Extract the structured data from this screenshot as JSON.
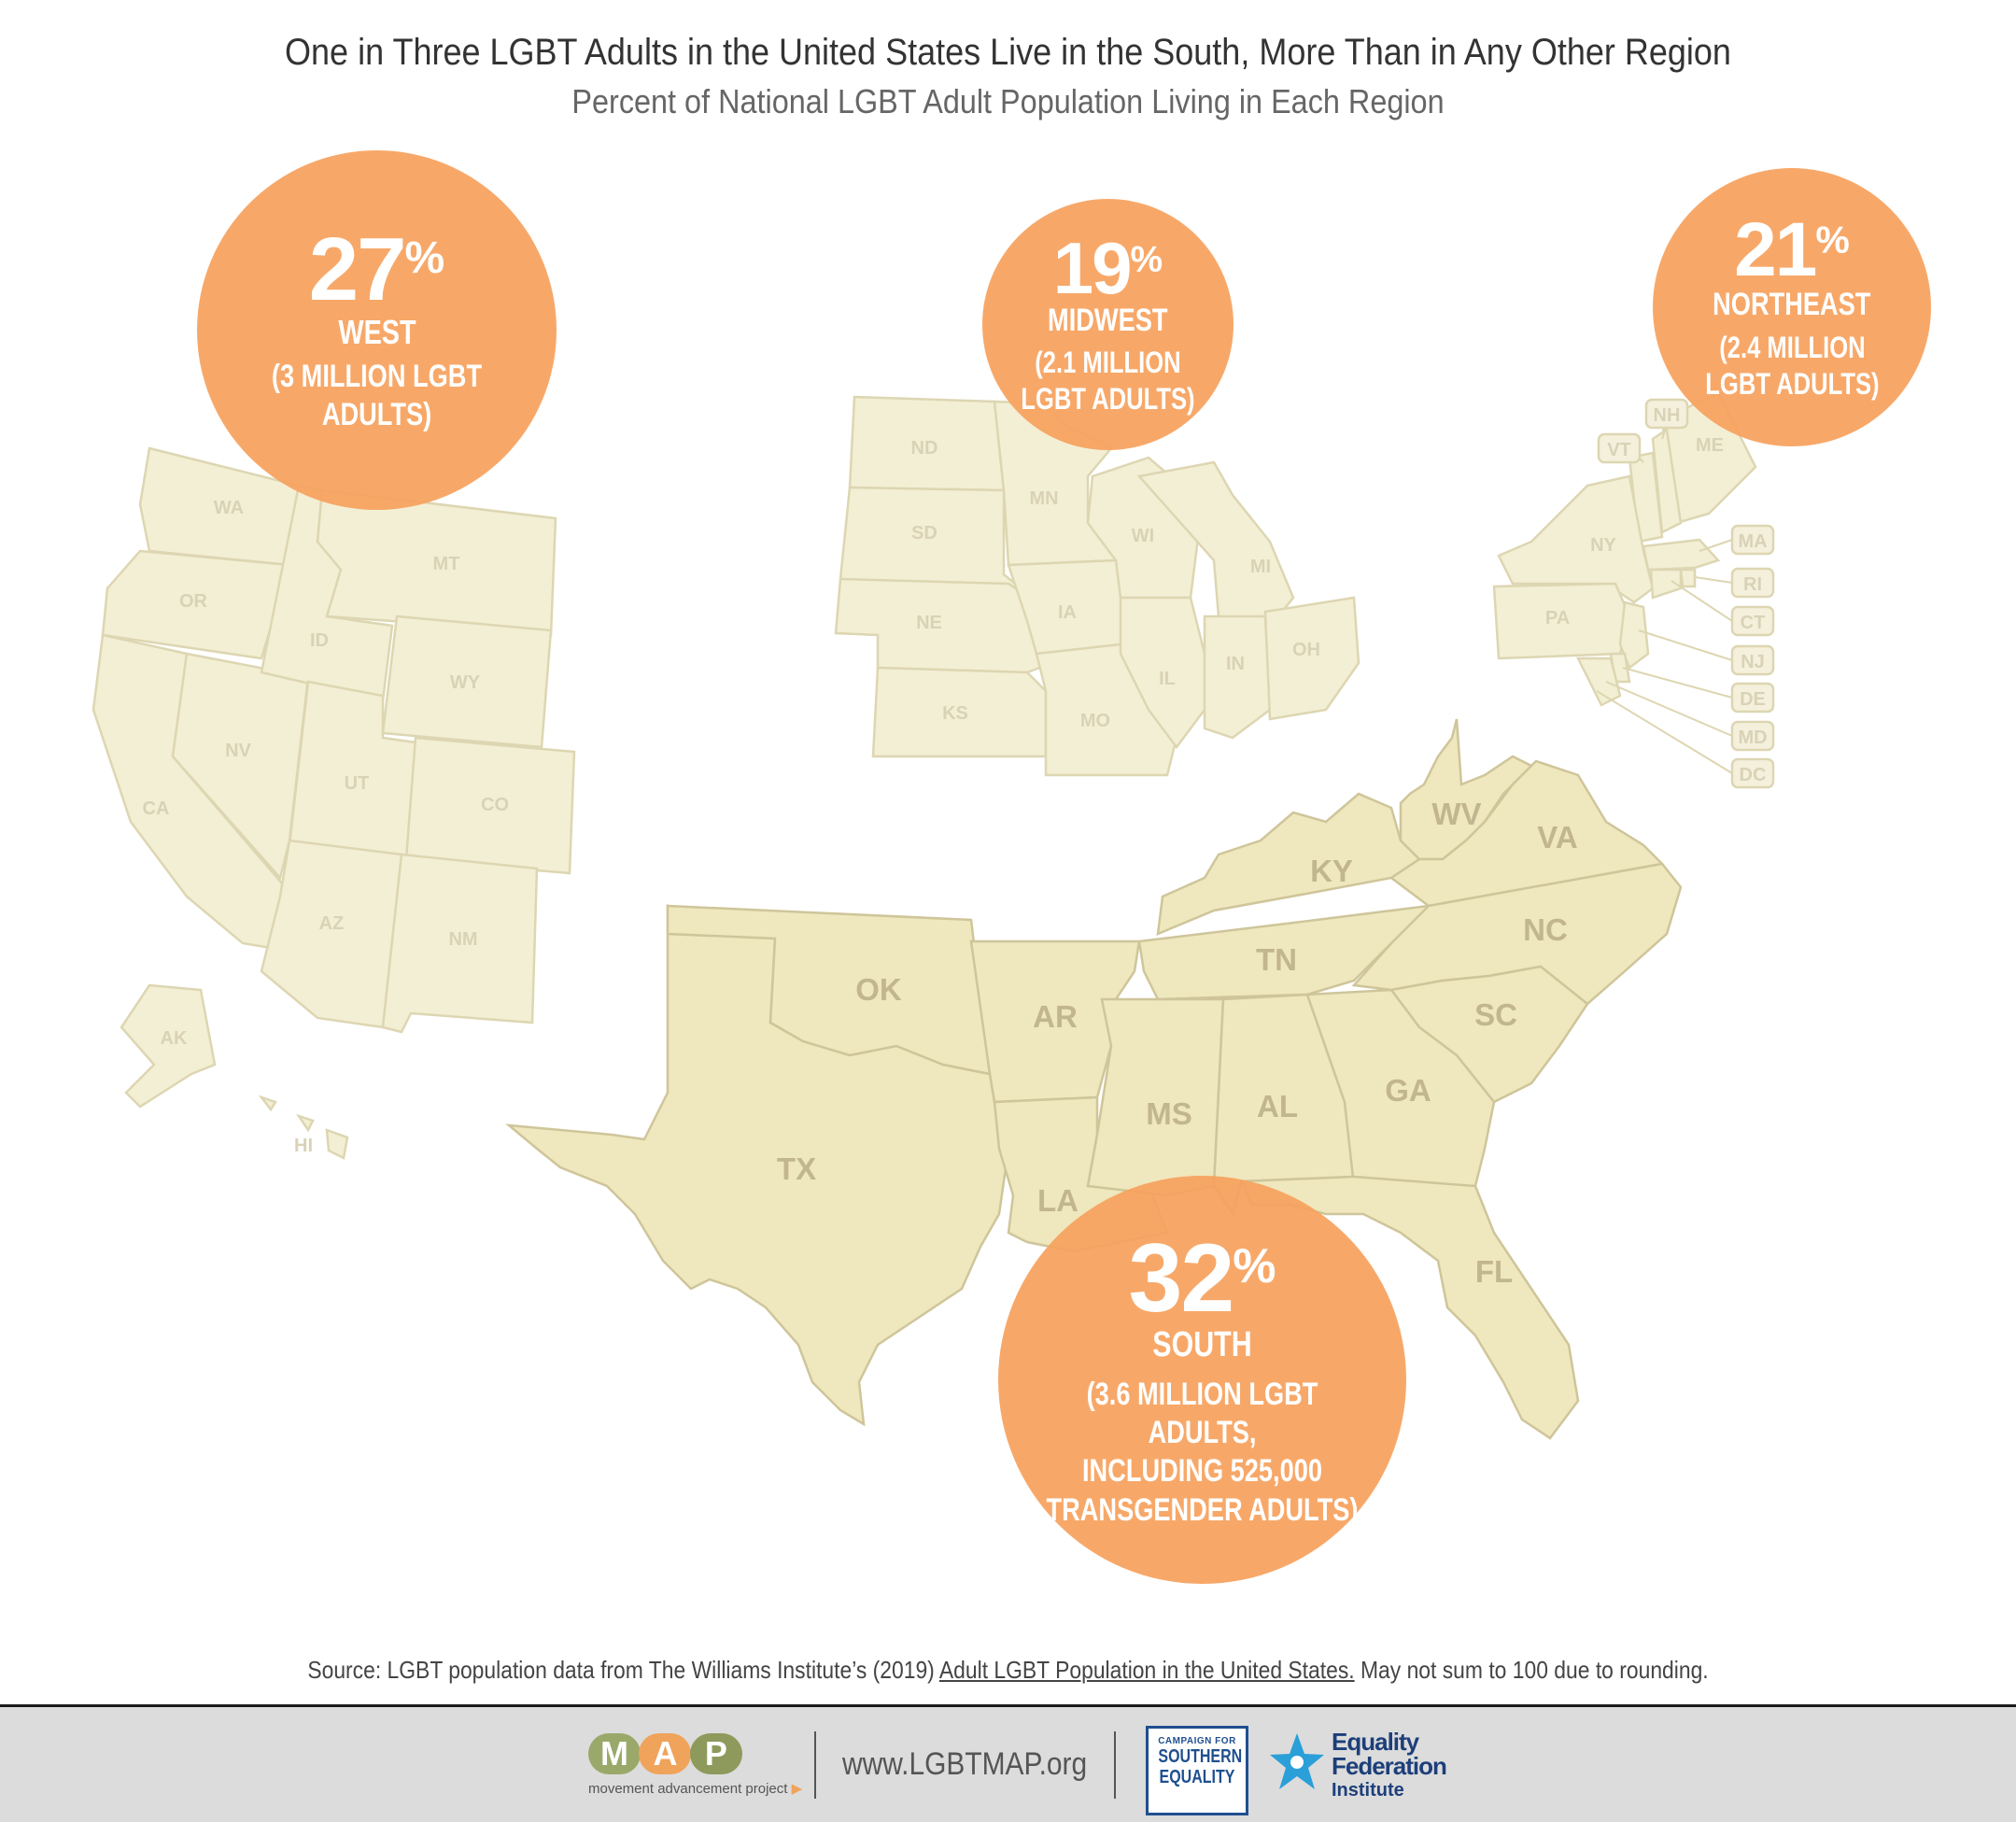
{
  "header": {
    "title": "One in Three LGBT Adults in the United States Live in the South, More Than in Any Other Region",
    "subtitle": "Percent of National LGBT Adult Population Living in Each Region"
  },
  "colors": {
    "south_fill": "#efe7bd",
    "other_fill": "#f3efd4",
    "circle": "#f6a15e"
  },
  "regions": {
    "west": {
      "percent": "27",
      "pct_sign": "%",
      "name": "WEST",
      "count": "(3 MILLION LGBT ADULTS)"
    },
    "midwest": {
      "percent": "19",
      "pct_sign": "%",
      "name": "MIDWEST",
      "count": "(2.1 MILLION\nLGBT ADULTS)"
    },
    "northeast": {
      "percent": "21",
      "pct_sign": "%",
      "name": "NORTHEAST",
      "count": "(2.4 MILLION\nLGBT ADULTS)"
    },
    "south": {
      "percent": "32",
      "pct_sign": "%",
      "name": "SOUTH",
      "count": "(3.6 MILLION LGBT ADULTS,\nINCLUDING 525,000\nTRANSGENDER ADULTS)"
    }
  },
  "states": {
    "west": [
      "WA",
      "OR",
      "CA",
      "ID",
      "NV",
      "MT",
      "WY",
      "UT",
      "CO",
      "AZ",
      "NM",
      "AK",
      "HI"
    ],
    "midwest": [
      "ND",
      "SD",
      "NE",
      "KS",
      "MN",
      "IA",
      "MO",
      "WI",
      "IL",
      "MI",
      "IN",
      "OH"
    ],
    "northeast": [
      "ME",
      "NH",
      "VT",
      "NY",
      "PA",
      "MA",
      "RI",
      "CT",
      "NJ"
    ],
    "northeast_callouts": [
      "NH",
      "VT",
      "MA",
      "RI",
      "CT",
      "NJ",
      "DE",
      "MD",
      "DC"
    ],
    "south": [
      "TX",
      "OK",
      "AR",
      "LA",
      "MS",
      "AL",
      "TN",
      "KY",
      "WV",
      "VA",
      "NC",
      "SC",
      "GA",
      "FL"
    ]
  },
  "source": {
    "prefix": "Source: LGBT population data from The Williams Institute’s (2019) ",
    "link": "Adult LGBT Population in the United States.",
    "suffix": " May not sum to 100 due to rounding."
  },
  "footer": {
    "map_letters": [
      "M",
      "A",
      "P"
    ],
    "map_tagline": "movement advancement project",
    "url": "www.LGBTMAP.org",
    "cse_small": "CAMPAIGN FOR",
    "cse_line1": "SOUTHERN",
    "cse_line2": "EQUALITY",
    "efi_line1": "Equality",
    "efi_line2": "Federation",
    "efi_line3": "Institute"
  }
}
